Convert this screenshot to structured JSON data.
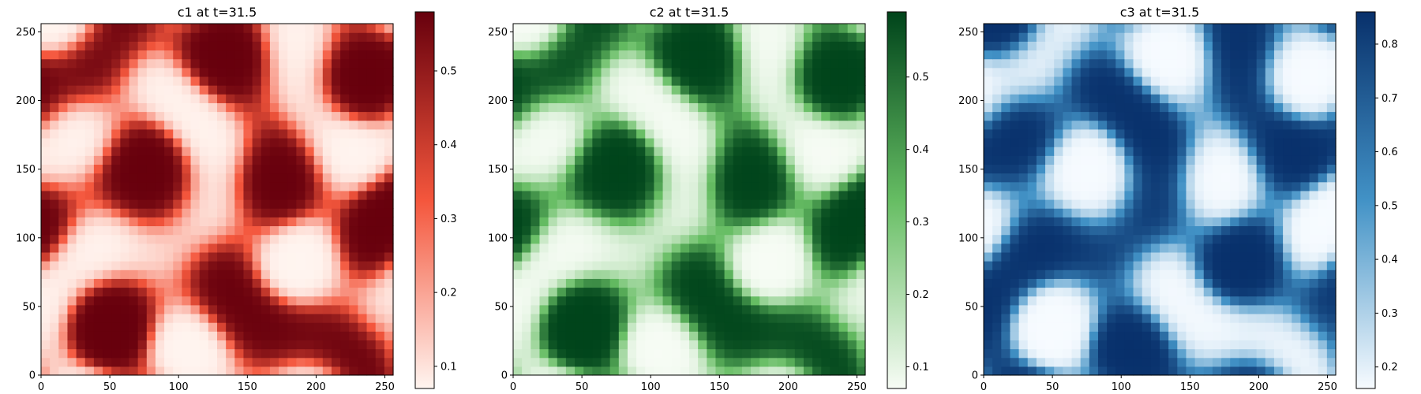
{
  "chart_data": [
    {
      "type": "heatmap",
      "title": "c1 at t=31.5",
      "xlabel": "",
      "ylabel": "",
      "xlim": [
        0,
        256
      ],
      "ylim": [
        0,
        256
      ],
      "xticks": [
        0,
        50,
        100,
        150,
        200,
        250
      ],
      "yticks": [
        0,
        50,
        100,
        150,
        200,
        250
      ],
      "colormap": "Reds",
      "colorbar": {
        "range": [
          0.07,
          0.58
        ],
        "ticks": [
          0.1,
          0.2,
          0.3,
          0.4,
          0.5
        ]
      },
      "colors": {
        "low": "#fff5f0",
        "mid": "#f4563c",
        "high": "#67000d"
      },
      "pattern_phase": 0.0
    },
    {
      "type": "heatmap",
      "title": "c2 at t=31.5",
      "xlabel": "",
      "ylabel": "",
      "xlim": [
        0,
        256
      ],
      "ylim": [
        0,
        256
      ],
      "xticks": [
        0,
        50,
        100,
        150,
        200,
        250
      ],
      "yticks": [
        0,
        50,
        100,
        150,
        200,
        250
      ],
      "colormap": "Greens",
      "colorbar": {
        "range": [
          0.07,
          0.59
        ],
        "ticks": [
          0.1,
          0.2,
          0.3,
          0.4,
          0.5
        ]
      },
      "colors": {
        "low": "#f7fcf5",
        "mid": "#66bd63",
        "high": "#00441b"
      },
      "pattern_phase": 0.0
    },
    {
      "type": "heatmap",
      "title": "c3 at t=31.5",
      "xlabel": "",
      "ylabel": "",
      "xlim": [
        0,
        256
      ],
      "ylim": [
        0,
        256
      ],
      "xticks": [
        0,
        50,
        100,
        150,
        200,
        250
      ],
      "yticks": [
        0,
        50,
        100,
        150,
        200,
        250
      ],
      "colormap": "Blues",
      "colorbar": {
        "range": [
          0.16,
          0.86
        ],
        "ticks": [
          0.2,
          0.3,
          0.4,
          0.5,
          0.6,
          0.7,
          0.8
        ]
      },
      "colors": {
        "low": "#f7fbff",
        "mid": "#4292c6",
        "high": "#08306b"
      },
      "pattern_phase": 0.0
    }
  ]
}
